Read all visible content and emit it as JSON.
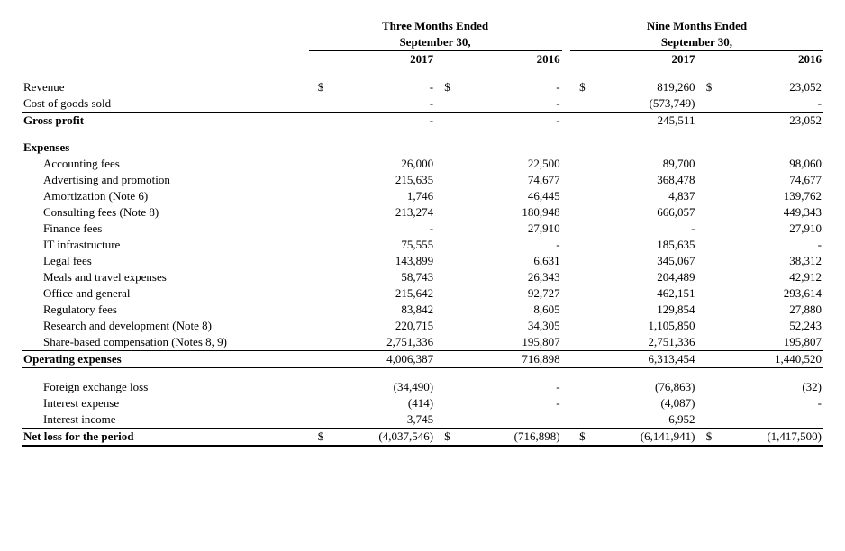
{
  "headers": {
    "three_months": "Three Months Ended",
    "nine_months": "Nine Months Ended",
    "sept30": "September 30,",
    "y2017": "2017",
    "y2016": "2016"
  },
  "sym": {
    "dollar": "$"
  },
  "rows": {
    "revenue": {
      "label": "Revenue",
      "tm17": "-",
      "tm16": "-",
      "nm17": "819,260",
      "nm16": "23,052"
    },
    "cogs": {
      "label": "Cost of goods sold",
      "tm17": "-",
      "tm16": "-",
      "nm17": "(573,749)",
      "nm16": "-"
    },
    "gross_profit": {
      "label": "Gross profit",
      "tm17": "-",
      "tm16": "-",
      "nm17": "245,511",
      "nm16": "23,052"
    },
    "expenses_hdr": {
      "label": "Expenses"
    },
    "accounting": {
      "label": "Accounting fees",
      "tm17": "26,000",
      "tm16": "22,500",
      "nm17": "89,700",
      "nm16": "98,060"
    },
    "advertising": {
      "label": "Advertising and promotion",
      "tm17": "215,635",
      "tm16": "74,677",
      "nm17": "368,478",
      "nm16": "74,677"
    },
    "amort": {
      "label": "Amortization (Note 6)",
      "tm17": "1,746",
      "tm16": "46,445",
      "nm17": "4,837",
      "nm16": "139,762"
    },
    "consult": {
      "label": "Consulting fees (Note 8)",
      "tm17": "213,274",
      "tm16": "180,948",
      "nm17": "666,057",
      "nm16": "449,343"
    },
    "finance": {
      "label": "Finance fees",
      "tm17": "-",
      "tm16": "27,910",
      "nm17": "-",
      "nm16": "27,910"
    },
    "it": {
      "label": "IT infrastructure",
      "tm17": "75,555",
      "tm16": "-",
      "nm17": "185,635",
      "nm16": "-"
    },
    "legal": {
      "label": "Legal fees",
      "tm17": "143,899",
      "tm16": "6,631",
      "nm17": "345,067",
      "nm16": "38,312"
    },
    "meals": {
      "label": "Meals and travel expenses",
      "tm17": "58,743",
      "tm16": "26,343",
      "nm17": "204,489",
      "nm16": "42,912"
    },
    "office": {
      "label": "Office and general",
      "tm17": "215,642",
      "tm16": "92,727",
      "nm17": "462,151",
      "nm16": "293,614"
    },
    "reg": {
      "label": "Regulatory fees",
      "tm17": "83,842",
      "tm16": "8,605",
      "nm17": "129,854",
      "nm16": "27,880"
    },
    "rnd": {
      "label": "Research and development (Note 8)",
      "tm17": "220,715",
      "tm16": "34,305",
      "nm17": "1,105,850",
      "nm16": "52,243"
    },
    "sbc": {
      "label": "Share-based compensation (Notes 8, 9)",
      "tm17": "2,751,336",
      "tm16": "195,807",
      "nm17": "2,751,336",
      "nm16": "195,807"
    },
    "opex": {
      "label": "Operating expenses",
      "tm17": "4,006,387",
      "tm16": "716,898",
      "nm17": "6,313,454",
      "nm16": "1,440,520"
    },
    "fx": {
      "label": "Foreign exchange loss",
      "tm17": "(34,490)",
      "tm16": "-",
      "nm17": "(76,863)",
      "nm16": "(32)"
    },
    "intexp": {
      "label": "Interest expense",
      "tm17": "(414)",
      "tm16": "-",
      "nm17": "(4,087)",
      "nm16": "-"
    },
    "intinc": {
      "label": "Interest income",
      "tm17": "3,745",
      "tm16": "",
      "nm17": "6,952",
      "nm16": ""
    },
    "netloss": {
      "label": "Net loss for the period",
      "tm17": "(4,037,546)",
      "tm16": "(716,898)",
      "nm17": "(6,141,941)",
      "nm16": "(1,417,500)"
    }
  },
  "style": {
    "font_family": "Times New Roman",
    "font_size_pt": 10,
    "text_color": "#000000",
    "background_color": "#ffffff",
    "border_color": "#000000"
  }
}
